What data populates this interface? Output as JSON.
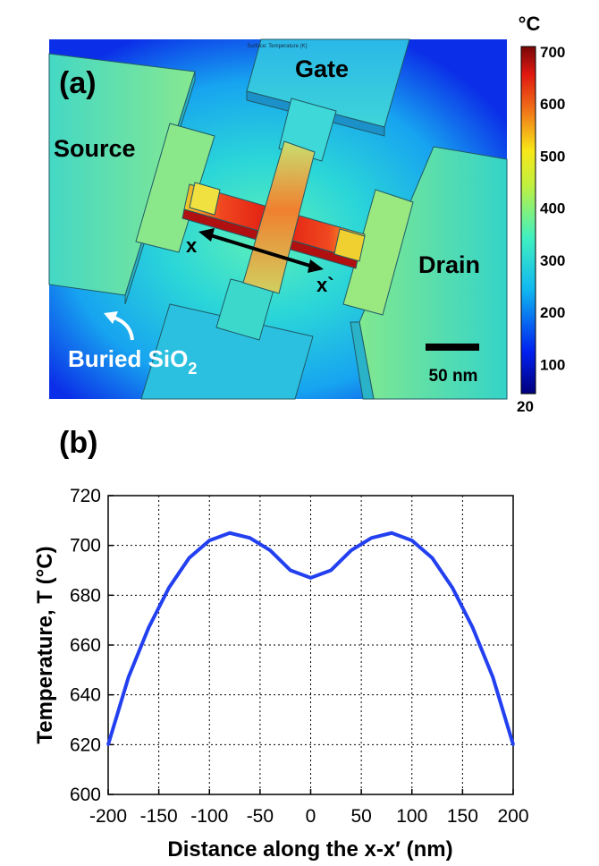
{
  "panel_a": {
    "label": "(a)",
    "surface_caption": "Surface: Temperature (K)",
    "regions": {
      "gate": "Gate",
      "source": "Source",
      "drain": "Drain",
      "oxide": "Buried SiO",
      "oxide_sub": "2"
    },
    "cut_line": {
      "start": "x",
      "end": "x`"
    },
    "scale_bar": "50 nm",
    "colorbar": {
      "unit": "°C",
      "min": 20,
      "max": 700,
      "ticks": [
        "700",
        "600",
        "500",
        "400",
        "300",
        "200",
        "100",
        "20"
      ]
    },
    "colors": {
      "cold": "#0a16e6",
      "cool": "#1aa8f0",
      "mid": "#3ee8c0",
      "warm": "#f5e51a",
      "hot": "#ee2211",
      "hottest": "#8a1010"
    }
  },
  "panel_b": {
    "label": "(b)"
  },
  "chart_data": {
    "type": "line",
    "xlabel": "Distance along the x-x′ (nm)",
    "ylabel": "Temperature, T (°C)",
    "xlim": [
      -200,
      200
    ],
    "ylim": [
      600,
      720
    ],
    "xticks": [
      -200,
      -150,
      -100,
      -50,
      0,
      50,
      100,
      150,
      200
    ],
    "yticks": [
      600,
      620,
      640,
      660,
      680,
      700,
      720
    ],
    "grid": true,
    "series": [
      {
        "color": "#2340f0",
        "x": [
          -200,
          -180,
          -160,
          -140,
          -120,
          -100,
          -80,
          -60,
          -40,
          -20,
          0,
          20,
          40,
          60,
          80,
          100,
          120,
          140,
          160,
          180,
          200
        ],
        "y": [
          620,
          647,
          667,
          683,
          695,
          702,
          705,
          703,
          698,
          690,
          687,
          690,
          698,
          703,
          705,
          702,
          695,
          683,
          667,
          647,
          620
        ]
      }
    ]
  }
}
